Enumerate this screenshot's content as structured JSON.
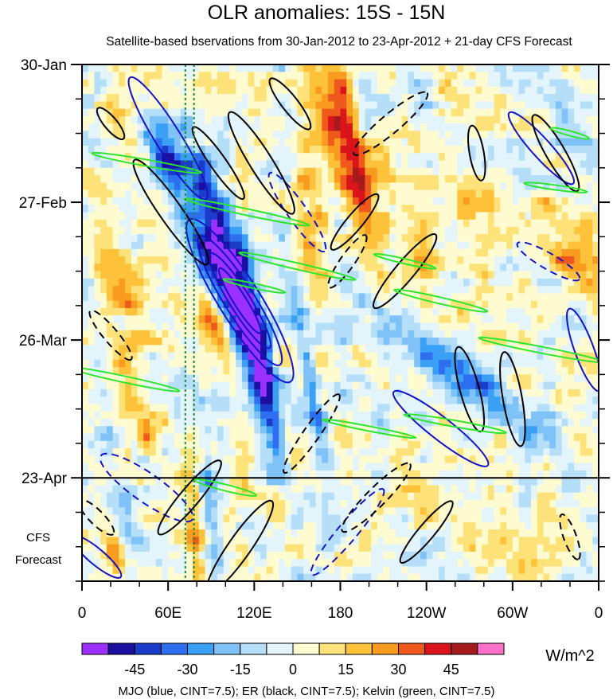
{
  "chart_data": {
    "type": "heatmap",
    "title": "OLR anomalies: 15S - 15N",
    "subtitle": "Satellite-based bservations from 30-Jan-2012 to 23-Apr-2012 + 21-day CFS Forecast",
    "xlabel": "",
    "ylabel": "",
    "x_ticks": [
      "0",
      "60E",
      "120E",
      "180",
      "120W",
      "60W",
      "0"
    ],
    "x_tick_values": [
      0,
      60,
      120,
      180,
      240,
      300,
      360
    ],
    "xlim": [
      0,
      360
    ],
    "y_ticks": [
      "30-Jan",
      "27-Feb",
      "26-Mar",
      "23-Apr"
    ],
    "y_tick_days": [
      0,
      28,
      56,
      84
    ],
    "ylim_days": [
      0,
      105
    ],
    "forecast_start_day": 84,
    "forecast_label": [
      "CFS",
      "Forecast"
    ],
    "reference_lon_lines": [
      72,
      78
    ],
    "colorbar": {
      "unit": "W/m^2",
      "tick_labels": [
        "-45",
        "-30",
        "-15",
        "0",
        "15",
        "30",
        "45"
      ],
      "tick_values": [
        -45,
        -30,
        -15,
        0,
        15,
        30,
        45
      ],
      "levels": [
        -60,
        -52.5,
        -45,
        -37.5,
        -30,
        -22.5,
        -15,
        -7.5,
        0,
        7.5,
        15,
        22.5,
        30,
        37.5,
        45,
        52.5,
        60
      ],
      "colors": [
        "#9b30ff",
        "#1a0f9e",
        "#1a3cc8",
        "#2d6ff0",
        "#3aa0f5",
        "#7fc2f7",
        "#b5def9",
        "#e3f4fb",
        "#fffbd0",
        "#fde27a",
        "#fdc23a",
        "#f99b1f",
        "#ef5a1c",
        "#d9151b",
        "#a51a1a",
        "#ff70c8"
      ]
    },
    "legend_text": "MJO (blue, CINT=7.5); ER (black, CINT=7.5); Kelvin (green, CINT=7.5)",
    "series": [
      {
        "name": "MJO",
        "color": "#1414c8"
      },
      {
        "name": "ER",
        "color": "#000000"
      },
      {
        "name": "Kelvin",
        "color": "#2ee62e"
      }
    ]
  }
}
